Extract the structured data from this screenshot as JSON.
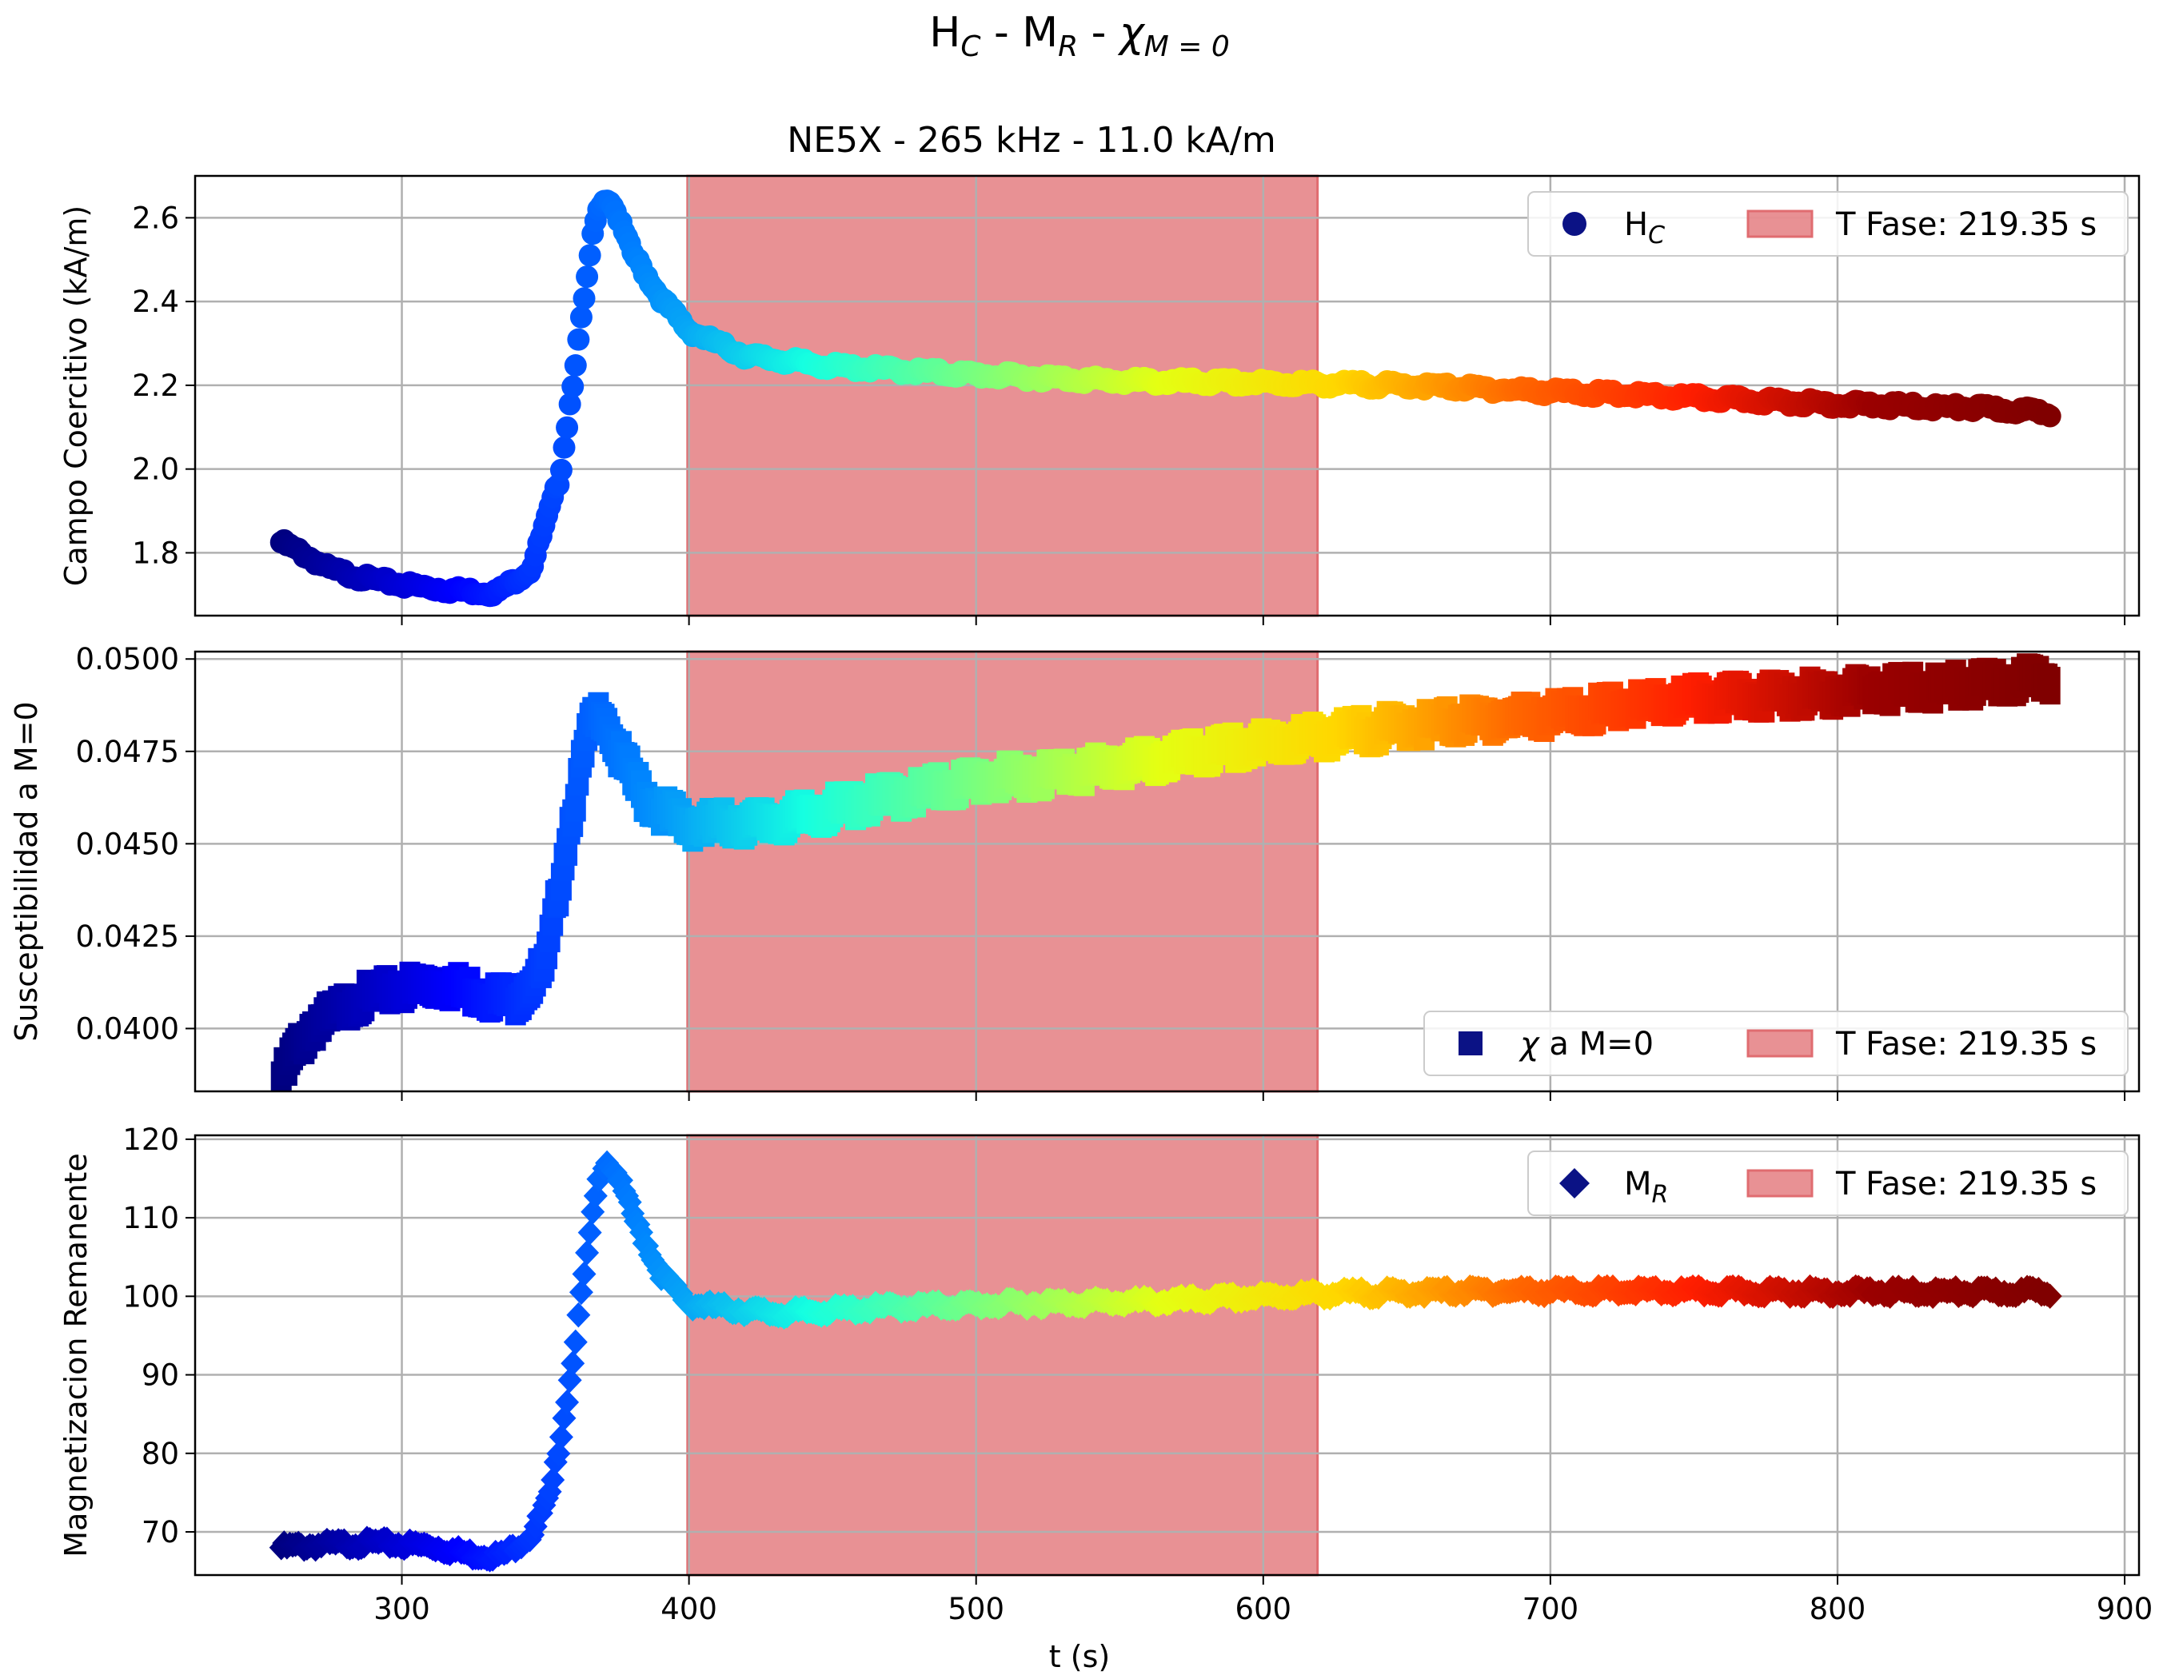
{
  "figure": {
    "suptitle": {
      "main": "H",
      "sub": "C",
      "mid1": " - M",
      "sub2": "R",
      "mid2": " - ",
      "chi": "χ",
      "sub3": "M = 0"
    },
    "subtitle": "NE5X - 265 kHz - 11.0 kA/m",
    "xlabel": "t (s)"
  },
  "colors": {
    "phase_band": "#e06c70",
    "legend_marker": "#0b1285",
    "grid": "#b0b0b0",
    "colormap": [
      "#00007f",
      "#0000ff",
      "#0080ff",
      "#15ffe1",
      "#7dff7a",
      "#e4ff13",
      "#ffd700",
      "#ff6800",
      "#ff1e00",
      "#9b0000",
      "#800000"
    ]
  },
  "chart_data": [
    {
      "type": "scatter",
      "marker": "circle",
      "ylabel": "Campo Coercitivo (kA/m)",
      "xlim": [
        228,
        905
      ],
      "ylim": [
        1.65,
        2.7
      ],
      "xticks": [
        300,
        400,
        500,
        600,
        700,
        800,
        900
      ],
      "yticks": [
        1.8,
        2.0,
        2.2,
        2.4,
        2.6
      ],
      "ytick_labels": [
        "1.8",
        "2.0",
        "2.2",
        "2.4",
        "2.6"
      ],
      "grid": true,
      "legend": {
        "position": "upper-right",
        "series_main": "H",
        "series_sub": "C",
        "band_label": "T Fase: 219.35 s"
      },
      "phase_band": [
        399.5,
        618.9
      ],
      "x": [
        258,
        265,
        275,
        290,
        305,
        320,
        333,
        345,
        355,
        362,
        367,
        370,
        373,
        380,
        390,
        400,
        420,
        450,
        500,
        550,
        600,
        650,
        700,
        750,
        800,
        850,
        874
      ],
      "y": [
        1.825,
        1.8,
        1.76,
        1.735,
        1.72,
        1.71,
        1.705,
        1.76,
        1.98,
        2.33,
        2.58,
        2.65,
        2.64,
        2.52,
        2.41,
        2.33,
        2.27,
        2.245,
        2.225,
        2.21,
        2.205,
        2.2,
        2.185,
        2.17,
        2.155,
        2.145,
        2.135
      ],
      "band_half_width": 0.015
    },
    {
      "type": "scatter",
      "marker": "square",
      "ylabel": "Susceptibilidad a M=0",
      "xlim": [
        228,
        905
      ],
      "ylim": [
        0.0383,
        0.0502
      ],
      "xticks": [
        300,
        400,
        500,
        600,
        700,
        800,
        900
      ],
      "yticks": [
        0.04,
        0.0425,
        0.045,
        0.0475,
        0.05
      ],
      "ytick_labels": [
        "0.0400",
        "0.0425",
        "0.0450",
        "0.0475",
        "0.0500"
      ],
      "grid": true,
      "legend": {
        "position": "lower-right",
        "series_chi": "χ",
        "series_rest": " a M=0",
        "band_label": "T Fase: 219.35 s"
      },
      "phase_band": [
        399.5,
        618.9
      ],
      "x": [
        258,
        262,
        270,
        285,
        300,
        315,
        330,
        340,
        350,
        358,
        365,
        370,
        375,
        385,
        400,
        430,
        460,
        500,
        550,
        600,
        650,
        700,
        750,
        800,
        850,
        874
      ],
      "y": [
        0.0386,
        0.0393,
        0.0401,
        0.0408,
        0.0411,
        0.0412,
        0.0409,
        0.0408,
        0.0417,
        0.0453,
        0.0481,
        0.0486,
        0.0475,
        0.0462,
        0.0455,
        0.0456,
        0.0461,
        0.0467,
        0.0471,
        0.0477,
        0.0482,
        0.0485,
        0.0489,
        0.0491,
        0.0493,
        0.0495
      ],
      "band_half_width": 0.00038
    },
    {
      "type": "scatter",
      "marker": "diamond",
      "ylabel": "Magnetizacion Remanente",
      "xlim": [
        228,
        905
      ],
      "ylim": [
        64.5,
        120.5
      ],
      "xticks": [
        300,
        400,
        500,
        600,
        700,
        800,
        900
      ],
      "yticks": [
        70,
        80,
        90,
        100,
        110,
        120
      ],
      "ytick_labels": [
        "70",
        "80",
        "90",
        "100",
        "110",
        "120"
      ],
      "grid": true,
      "legend": {
        "position": "upper-right",
        "series_main": "M",
        "series_sub": "R",
        "band_label": "T Fase: 219.35 s"
      },
      "phase_band": [
        399.5,
        618.9
      ],
      "x": [
        258,
        270,
        290,
        310,
        325,
        335,
        345,
        352,
        358,
        364,
        368,
        371,
        375,
        382,
        390,
        400,
        430,
        470,
        520,
        570,
        620,
        680,
        750,
        800,
        850,
        874
      ],
      "y": [
        68.0,
        68.3,
        68.6,
        68.2,
        67.1,
        67.0,
        69.5,
        75.0,
        88.0,
        104.0,
        114.0,
        117.5,
        115.5,
        109.0,
        103.0,
        99.0,
        97.8,
        98.6,
        99.1,
        99.4,
        100.3,
        100.7,
        100.6,
        100.6,
        100.5,
        100.6
      ],
      "band_half_width": 1.0
    }
  ]
}
